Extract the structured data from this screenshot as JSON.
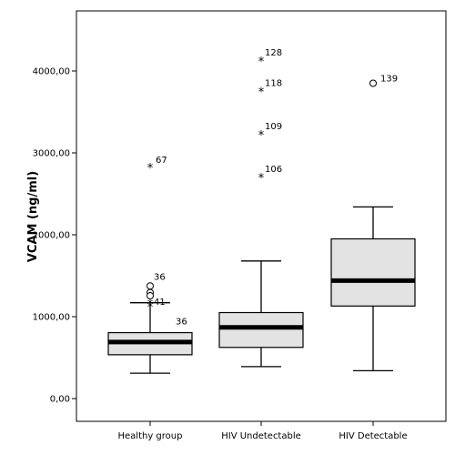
{
  "chart_data": {
    "type": "boxplot",
    "ylabel": "VCAM (ng/ml)",
    "ylim": [
      0,
      4600
    ],
    "yticks": [
      {
        "value": 0,
        "label": "0,00"
      },
      {
        "value": 1000,
        "label": "1000,00"
      },
      {
        "value": 2000,
        "label": "2000,00"
      },
      {
        "value": 3000,
        "label": "3000,00"
      },
      {
        "value": 4000,
        "label": "4000,00"
      }
    ],
    "groups": [
      {
        "name": "Healthy group",
        "whisker_low": 310,
        "q1": 535,
        "median": 690,
        "q3": 805,
        "whisker_high": 1170,
        "outliers": [
          {
            "value": 1375,
            "marker": "circle",
            "label": "36"
          },
          {
            "value": 1295,
            "marker": "circle",
            "label": ""
          },
          {
            "value": 1255,
            "marker": "circle",
            "label": ""
          },
          {
            "value": 1120,
            "marker": "star",
            "label": "41"
          },
          {
            "value": 1160,
            "marker": "star",
            "label": "36"
          },
          {
            "value": 2820,
            "marker": "star",
            "label": "67"
          }
        ]
      },
      {
        "name": "HIV Undetectable",
        "whisker_low": 390,
        "q1": 625,
        "median": 870,
        "q3": 1050,
        "whisker_high": 1680,
        "outliers": [
          {
            "value": 2700,
            "marker": "star",
            "label": "106"
          },
          {
            "value": 3220,
            "marker": "star",
            "label": "109"
          },
          {
            "value": 3750,
            "marker": "star",
            "label": "118"
          },
          {
            "value": 4120,
            "marker": "star",
            "label": "128"
          }
        ]
      },
      {
        "name": "HIV Detectable",
        "whisker_low": 340,
        "q1": 1130,
        "median": 1440,
        "q3": 1950,
        "whisker_high": 2340,
        "outliers": [
          {
            "value": 3850,
            "marker": "circle",
            "label": "139"
          }
        ]
      }
    ],
    "colors": {
      "box_fill": "#e3e3e3",
      "stroke": "#000000",
      "median": "#000000"
    }
  }
}
